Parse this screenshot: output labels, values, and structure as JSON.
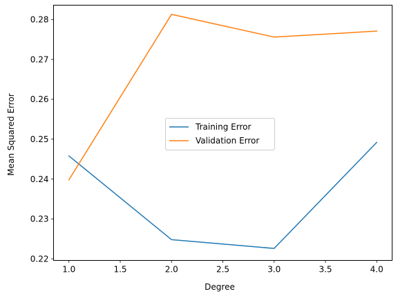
{
  "chart_data": {
    "type": "line",
    "title": "",
    "xlabel": "Degree",
    "ylabel": "Mean Squared Error",
    "x": [
      1,
      2,
      3,
      4
    ],
    "xlim": [
      0.85,
      4.15
    ],
    "ylim": [
      0.2196,
      0.2836
    ],
    "xticks": [
      1.0,
      1.5,
      2.0,
      2.5,
      3.0,
      3.5,
      4.0
    ],
    "xtick_labels": [
      "1.0",
      "1.5",
      "2.0",
      "2.5",
      "3.0",
      "3.5",
      "4.0"
    ],
    "yticks": [
      0.22,
      0.23,
      0.24,
      0.25,
      0.26,
      0.27,
      0.28
    ],
    "ytick_labels": [
      "0.22",
      "0.23",
      "0.24",
      "0.25",
      "0.26",
      "0.27",
      "0.28"
    ],
    "grid": false,
    "legend_position": "center",
    "series": [
      {
        "name": "Training Error",
        "color": "#1f77b4",
        "values": [
          0.2458,
          0.2248,
          0.2226,
          0.2492
        ]
      },
      {
        "name": "Validation Error",
        "color": "#ff7f0e",
        "values": [
          0.2398,
          0.2813,
          0.2756,
          0.2771
        ]
      }
    ]
  }
}
